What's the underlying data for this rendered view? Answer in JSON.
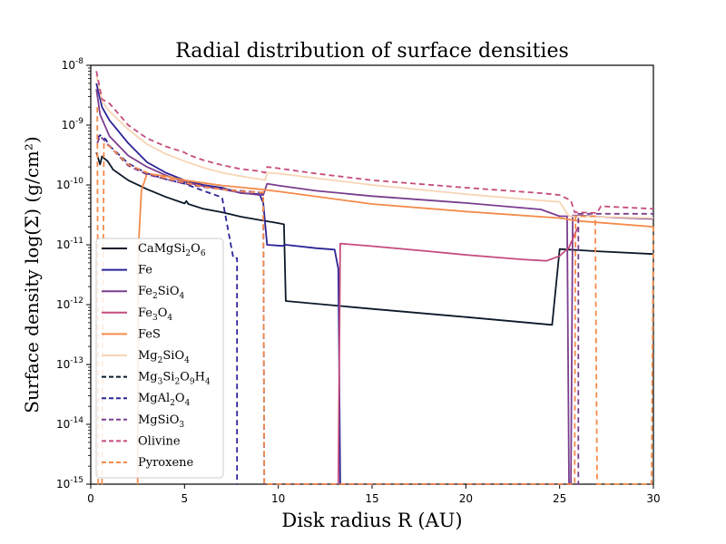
{
  "chart_data": {
    "type": "line",
    "title": "Radial distribution of surface densities",
    "xlabel": "Disk radius R (AU)",
    "ylabel": "Surface density log(Σ) (g/cm²)",
    "xlim": [
      0,
      30
    ],
    "ylim_log10": [
      -15,
      -8
    ],
    "yscale": "log",
    "grid": false,
    "legend_placement": "lower-left",
    "x_ticks": [
      0,
      5,
      10,
      15,
      20,
      25,
      30
    ],
    "y_ticks": [
      -15,
      -14,
      -13,
      -12,
      -11,
      -10,
      -9,
      -8
    ],
    "series": [
      {
        "name": "CaMgSi",
        "name_sub": [
          "2",
          "O",
          "6"
        ],
        "label_plain": "CaMgSi2O6",
        "color": "#0b1929",
        "dash": "solid",
        "points": [
          [
            0.3,
            3.5e-10
          ],
          [
            0.5,
            2.2e-10
          ],
          [
            0.6,
            3e-10
          ],
          [
            0.7,
            2.8e-10
          ],
          [
            0.9,
            2.5e-10
          ],
          [
            1.2,
            1.8e-10
          ],
          [
            2,
            1.2e-10
          ],
          [
            3,
            8.5e-11
          ],
          [
            4,
            6.3e-11
          ],
          [
            5,
            4.9e-11
          ],
          [
            5.1,
            5.4e-11
          ],
          [
            5.2,
            4.8e-11
          ],
          [
            6,
            4e-11
          ],
          [
            7,
            3.5e-11
          ],
          [
            8,
            2.95e-11
          ],
          [
            9,
            2.6e-11
          ],
          [
            10,
            2.3e-11
          ],
          [
            10.3,
            2.2e-11
          ],
          [
            10.4,
            1.15e-12
          ],
          [
            15,
            8.5e-13
          ],
          [
            20,
            6.2e-13
          ],
          [
            24.6,
            4.6e-13
          ],
          [
            25,
            8.5e-12
          ],
          [
            27,
            7.8e-12
          ],
          [
            30,
            7e-12
          ]
        ]
      },
      {
        "name": "Fe",
        "label_plain": "Fe",
        "color": "#2b2497",
        "dash": "solid",
        "points": [
          [
            0.3,
            5e-09
          ],
          [
            0.6,
            2e-09
          ],
          [
            1,
            1.2e-09
          ],
          [
            2,
            5e-10
          ],
          [
            3,
            2.4e-10
          ],
          [
            4,
            1.6e-10
          ],
          [
            5,
            1.2e-10
          ],
          [
            6,
            1e-10
          ],
          [
            7,
            9e-11
          ],
          [
            8,
            7.3e-11
          ],
          [
            9,
            7e-11
          ],
          [
            9.2,
            5e-11
          ],
          [
            9.4,
            1e-11
          ],
          [
            10.2,
            9.6e-12
          ],
          [
            10.4,
            1e-11
          ],
          [
            12,
            8.8e-12
          ],
          [
            13,
            8.3e-12
          ],
          [
            13.2,
            4e-12
          ],
          [
            13.3,
            1e-15
          ]
        ]
      },
      {
        "name": "Fe",
        "name_sub": [
          "2",
          "SiO",
          "4"
        ],
        "label_plain": "Fe2SiO4",
        "color": "#7b3e8f",
        "dash": "solid",
        "points": [
          [
            0.3,
            4e-09
          ],
          [
            0.5,
            1.5e-09
          ],
          [
            1,
            6.5e-10
          ],
          [
            2,
            3.1e-10
          ],
          [
            3,
            2e-10
          ],
          [
            4,
            1.45e-10
          ],
          [
            5,
            1.12e-10
          ],
          [
            6,
            9.6e-11
          ],
          [
            7,
            8.5e-11
          ],
          [
            8,
            7.4e-11
          ],
          [
            9,
            6.8e-11
          ],
          [
            9.2,
            6.8e-11
          ],
          [
            9.4,
            1.05e-10
          ],
          [
            10,
            9.8e-11
          ],
          [
            12,
            8e-11
          ],
          [
            15,
            6.5e-11
          ],
          [
            20,
            5e-11
          ],
          [
            24,
            3.9e-11
          ],
          [
            25,
            3e-11
          ],
          [
            25.4,
            3e-11
          ],
          [
            25.5,
            1e-15
          ],
          [
            25.6,
            1e-15
          ],
          [
            25.7,
            3.1e-11
          ],
          [
            26,
            3.1e-11
          ],
          [
            28,
            2.85e-11
          ],
          [
            30,
            2.7e-11
          ]
        ]
      },
      {
        "name": "Fe",
        "name_sub": [
          "3",
          "O",
          "4"
        ],
        "label_plain": "Fe3O4",
        "color": "#c54b7d",
        "dash": "solid",
        "points": [
          [
            13.2,
            1e-15
          ],
          [
            13.3,
            1.05e-11
          ],
          [
            15,
            9.5e-12
          ],
          [
            18,
            7.8e-12
          ],
          [
            20,
            6.8e-12
          ],
          [
            23,
            5.7e-12
          ],
          [
            24.3,
            5.4e-12
          ],
          [
            25,
            6.5e-12
          ],
          [
            25.5,
            9e-12
          ],
          [
            25.8,
            1.5e-11
          ],
          [
            26,
            2e-11
          ]
        ]
      },
      {
        "name": "FeS",
        "label_plain": "FeS",
        "color": "#f48a4a",
        "dash": "solid",
        "points": [
          [
            2.5,
            1e-15
          ],
          [
            2.55,
            1e-11
          ],
          [
            2.7,
            8e-11
          ],
          [
            3,
            1.55e-10
          ],
          [
            4,
            1.4e-10
          ],
          [
            5,
            1.2e-10
          ],
          [
            7,
            9.8e-11
          ],
          [
            9,
            8.5e-11
          ],
          [
            10,
            7.8e-11
          ],
          [
            15,
            4.8e-11
          ],
          [
            20,
            3.6e-11
          ],
          [
            25,
            2.8e-11
          ],
          [
            26,
            2.5e-11
          ],
          [
            30,
            2e-11
          ]
        ]
      },
      {
        "name": "Mg",
        "name_sub": [
          "2",
          "SiO",
          "4"
        ],
        "label_plain": "Mg2SiO4",
        "color": "#f7d5b5",
        "dash": "solid",
        "points": [
          [
            0.3,
            7e-09
          ],
          [
            0.6,
            2.5e-09
          ],
          [
            1,
            1.7e-09
          ],
          [
            2,
            8.5e-10
          ],
          [
            3,
            4.8e-10
          ],
          [
            4,
            3.3e-10
          ],
          [
            5,
            2.5e-10
          ],
          [
            6,
            1.95e-10
          ],
          [
            7,
            1.6e-10
          ],
          [
            8,
            1.4e-10
          ],
          [
            9,
            1.25e-10
          ],
          [
            9.3,
            1.2e-10
          ],
          [
            9.4,
            1.6e-10
          ],
          [
            10,
            1.55e-10
          ],
          [
            12,
            1.3e-10
          ],
          [
            15,
            1e-10
          ],
          [
            20,
            7e-11
          ],
          [
            24,
            5.5e-11
          ],
          [
            25,
            5.2e-11
          ],
          [
            25.5,
            3e-11
          ],
          [
            26,
            3e-11
          ],
          [
            30,
            2.8e-11
          ]
        ]
      },
      {
        "name": "Mg",
        "name_sub": [
          "3",
          "Si",
          "2",
          "O",
          "9",
          "H",
          "4"
        ],
        "label_plain": "Mg3Si2O9H4",
        "color": "#0b1929",
        "dash": "dashed",
        "points": []
      },
      {
        "name": "MgAl",
        "name_sub": [
          "2",
          "O",
          "4"
        ],
        "label_plain": "MgAl2O4",
        "color": "#2b2497",
        "dash": "dashed",
        "points": [
          [
            0.35,
            6e-10
          ],
          [
            0.5,
            6.8e-10
          ],
          [
            0.8,
            5.8e-10
          ],
          [
            1,
            4.5e-10
          ],
          [
            2,
            2.3e-10
          ],
          [
            3,
            1.55e-10
          ],
          [
            4,
            1.25e-10
          ],
          [
            5,
            1.05e-10
          ],
          [
            6,
            8e-11
          ],
          [
            7,
            6.2e-11
          ],
          [
            7.6,
            6e-12
          ],
          [
            7.8,
            6e-12
          ],
          [
            7.8,
            1e-15
          ]
        ]
      },
      {
        "name": "MgSiO",
        "name_sub": [
          "3"
        ],
        "label_plain": "MgSiO3",
        "color": "#7b3e8f",
        "dash": "dashed",
        "points": [
          [
            0.35,
            5e-10
          ],
          [
            0.5,
            6.5e-10
          ],
          [
            0.8,
            5.3e-10
          ],
          [
            1,
            4.4e-10
          ],
          [
            2,
            2.1e-10
          ],
          [
            3,
            1.5e-10
          ],
          [
            4,
            1.25e-10
          ],
          [
            5,
            1.05e-10
          ],
          [
            6,
            9.2e-11
          ],
          [
            7,
            8.5e-11
          ],
          [
            8,
            8e-11
          ],
          [
            9,
            7.5e-11
          ],
          [
            9.2,
            7e-11
          ],
          [
            9.25,
            1e-15
          ],
          [
            9.3,
            1e-15
          ],
          [
            9.35,
            1e-15
          ],
          [
            26,
            1e-15
          ],
          [
            26,
            3.3e-11
          ],
          [
            30,
            3.3e-11
          ]
        ]
      },
      {
        "name": "Olivine",
        "label_plain": "Olivine",
        "color": "#c54b7d",
        "dash": "dashed",
        "points": [
          [
            0.3,
            8e-09
          ],
          [
            0.6,
            2.7e-09
          ],
          [
            1,
            2.3e-09
          ],
          [
            2,
            1e-09
          ],
          [
            3,
            6e-10
          ],
          [
            4,
            4.4e-10
          ],
          [
            5,
            3.5e-10
          ],
          [
            5.2,
            3.2e-10
          ],
          [
            6,
            2.6e-10
          ],
          [
            7,
            2.15e-10
          ],
          [
            8,
            1.85e-10
          ],
          [
            9,
            1.7e-10
          ],
          [
            9.3,
            1.6e-10
          ],
          [
            9.4,
            2e-10
          ],
          [
            10,
            1.9e-10
          ],
          [
            12,
            1.55e-10
          ],
          [
            15,
            1.2e-10
          ],
          [
            20,
            9e-11
          ],
          [
            24,
            7.3e-11
          ],
          [
            25,
            6.8e-11
          ],
          [
            25.6,
            5.5e-11
          ],
          [
            25.8,
            3.5e-11
          ],
          [
            27,
            3.4e-11
          ],
          [
            27.2,
            4.4e-11
          ],
          [
            30,
            4e-11
          ]
        ]
      },
      {
        "name": "Pyroxene",
        "label_plain": "Pyroxene",
        "color": "#f48a4a",
        "dash": "dashed",
        "points": [
          [
            0.35,
            2e-09
          ],
          [
            0.4,
            1e-15
          ],
          [
            0.6,
            1e-15
          ],
          [
            0.7,
            5e-10
          ],
          [
            1,
            4.4e-10
          ],
          [
            2,
            2.2e-10
          ],
          [
            3,
            1.6e-10
          ],
          [
            4,
            1.3e-10
          ],
          [
            5,
            1.1e-10
          ],
          [
            6,
            9.3e-11
          ],
          [
            7,
            8.5e-11
          ],
          [
            8,
            7.8e-11
          ],
          [
            9,
            7.5e-11
          ],
          [
            9.2,
            7.5e-11
          ],
          [
            9.25,
            1e-15
          ],
          [
            9.4,
            1e-15
          ],
          [
            25.8,
            1e-15
          ],
          [
            25.85,
            3e-11
          ],
          [
            26.9,
            3e-11
          ],
          [
            27,
            1e-15
          ],
          [
            29.9,
            1e-15
          ],
          [
            30,
            2e-11
          ]
        ]
      }
    ]
  }
}
